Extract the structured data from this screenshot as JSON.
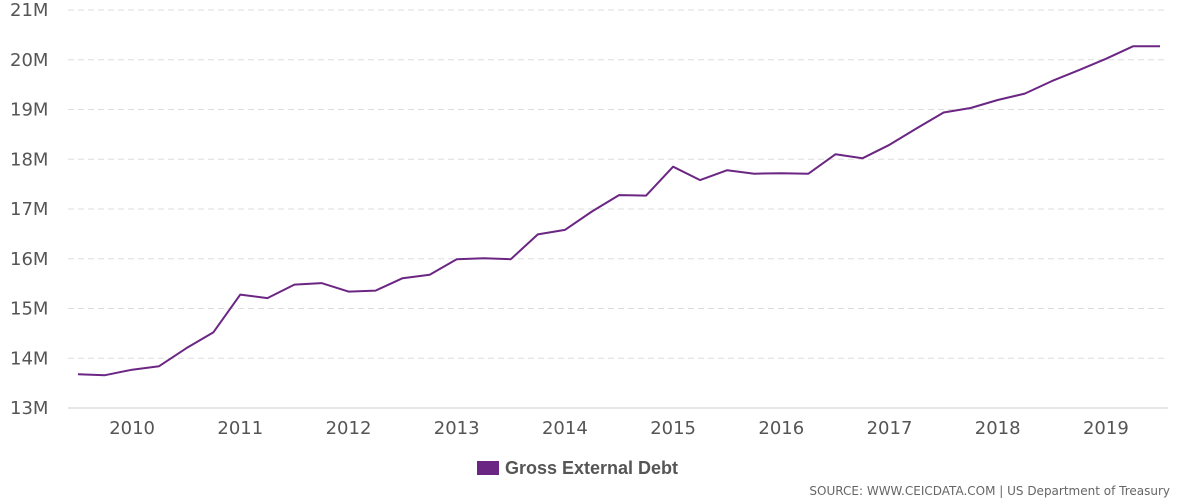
{
  "colors": {
    "series": "#6b2683",
    "grid": "#dddddd",
    "text": "#555555"
  },
  "legend": {
    "label": "Gross External Debt"
  },
  "source": "SOURCE: WWW.CEICDATA.COM | US Department of Treasury",
  "chart_data": {
    "type": "line",
    "title": "",
    "xlabel": "",
    "ylabel": "",
    "ylim": [
      13000000,
      21000000
    ],
    "y_ticks": [
      {
        "value": 13000000,
        "label": "13M"
      },
      {
        "value": 14000000,
        "label": "14M"
      },
      {
        "value": 15000000,
        "label": "15M"
      },
      {
        "value": 16000000,
        "label": "16M"
      },
      {
        "value": 17000000,
        "label": "17M"
      },
      {
        "value": 18000000,
        "label": "18M"
      },
      {
        "value": 19000000,
        "label": "19M"
      },
      {
        "value": 20000000,
        "label": "20M"
      },
      {
        "value": 21000000,
        "label": "21M"
      }
    ],
    "xlim": [
      2009.5,
      2019.5
    ],
    "x_ticks": [
      {
        "value": 2010,
        "label": "2010"
      },
      {
        "value": 2011,
        "label": "2011"
      },
      {
        "value": 2012,
        "label": "2012"
      },
      {
        "value": 2013,
        "label": "2013"
      },
      {
        "value": 2014,
        "label": "2014"
      },
      {
        "value": 2015,
        "label": "2015"
      },
      {
        "value": 2016,
        "label": "2016"
      },
      {
        "value": 2017,
        "label": "2017"
      },
      {
        "value": 2018,
        "label": "2018"
      },
      {
        "value": 2019,
        "label": "2019"
      }
    ],
    "series": [
      {
        "name": "Gross External Debt",
        "x": [
          2009.5,
          2009.75,
          2010.0,
          2010.25,
          2010.5,
          2010.75,
          2011.0,
          2011.25,
          2011.5,
          2011.75,
          2012.0,
          2012.25,
          2012.5,
          2012.75,
          2013.0,
          2013.25,
          2013.5,
          2013.75,
          2014.0,
          2014.25,
          2014.5,
          2014.75,
          2015.0,
          2015.25,
          2015.5,
          2015.75,
          2016.0,
          2016.25,
          2016.5,
          2016.75,
          2017.0,
          2017.25,
          2017.5,
          2017.75,
          2018.0,
          2018.25,
          2018.5,
          2018.75,
          2019.0,
          2019.25,
          2019.5
        ],
        "values": [
          13680000,
          13660000,
          13770000,
          13840000,
          14200000,
          14520000,
          15280000,
          15210000,
          15480000,
          15510000,
          15340000,
          15360000,
          15610000,
          15680000,
          15990000,
          16010000,
          15990000,
          16490000,
          16580000,
          16950000,
          17280000,
          17270000,
          17850000,
          17580000,
          17780000,
          17710000,
          17720000,
          17710000,
          18100000,
          18020000,
          18290000,
          18620000,
          18940000,
          19030000,
          19190000,
          19320000,
          19570000,
          19790000,
          20020000,
          20270000,
          20270000
        ]
      }
    ]
  }
}
